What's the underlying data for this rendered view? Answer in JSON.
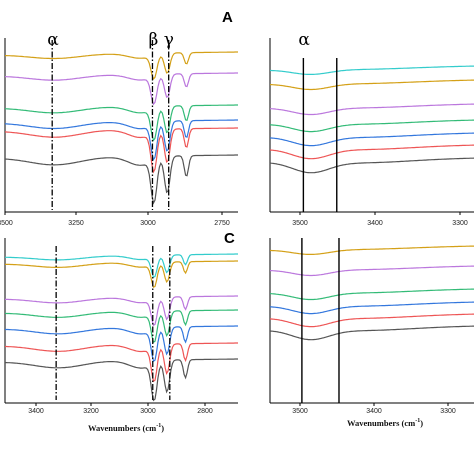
{
  "chart_data": [
    {
      "type": "line",
      "panel_label": "A",
      "x_ticks": [
        "3500",
        "3250",
        "3000",
        "2750"
      ],
      "xlim": [
        3500,
        2710
      ],
      "markers": [
        {
          "label": "α",
          "x": 3340
        },
        {
          "label": "β",
          "x": 3000
        },
        {
          "label": "γ",
          "x": 2945
        }
      ],
      "series_colors": [
        "#d4a017",
        "#bb77dd",
        "#33bb77",
        "#3377dd",
        "#ee5555",
        "#555555"
      ]
    },
    {
      "type": "line",
      "panel_label": "",
      "x_ticks": [
        "3500",
        "3400",
        "3300"
      ],
      "xlim": [
        3565,
        3290
      ],
      "markers": [
        {
          "label": "α",
          "x": 3520
        },
        {
          "label": "",
          "x": 3475
        }
      ],
      "series_colors": [
        "#33cccc",
        "#d4a017",
        "#bb77dd",
        "#33bb77",
        "#3377dd",
        "#ee5555",
        "#555555"
      ]
    },
    {
      "type": "line",
      "panel_label": "C",
      "x_ticks": [
        "3400",
        "3200",
        "3000",
        "2800"
      ],
      "xlim": [
        3520,
        2700
      ],
      "xlabel": "Wavenumbers (cm",
      "xlabel_sup": "-1",
      "xlabel_end": ")",
      "markers": [
        {
          "label": "",
          "x": 3340
        },
        {
          "label": "",
          "x": 3000
        },
        {
          "label": "",
          "x": 2940
        }
      ],
      "series_colors": [
        "#33cccc",
        "#d4a017",
        "#bb77dd",
        "#33bb77",
        "#3377dd",
        "#ee5555",
        "#555555"
      ]
    },
    {
      "type": "line",
      "panel_label": "",
      "x_ticks": [
        "3500",
        "3400",
        "3300"
      ],
      "xlim": [
        3565,
        3290
      ],
      "xlabel": "Wavenumbers (cm",
      "xlabel_sup": "-1",
      "xlabel_end": ")",
      "markers": [
        {
          "label": "",
          "x": 3522
        },
        {
          "label": "",
          "x": 3472
        }
      ],
      "series_colors": [
        "#d4a017",
        "#bb77dd",
        "#33bb77",
        "#3377dd",
        "#ee5555",
        "#555555"
      ]
    }
  ]
}
